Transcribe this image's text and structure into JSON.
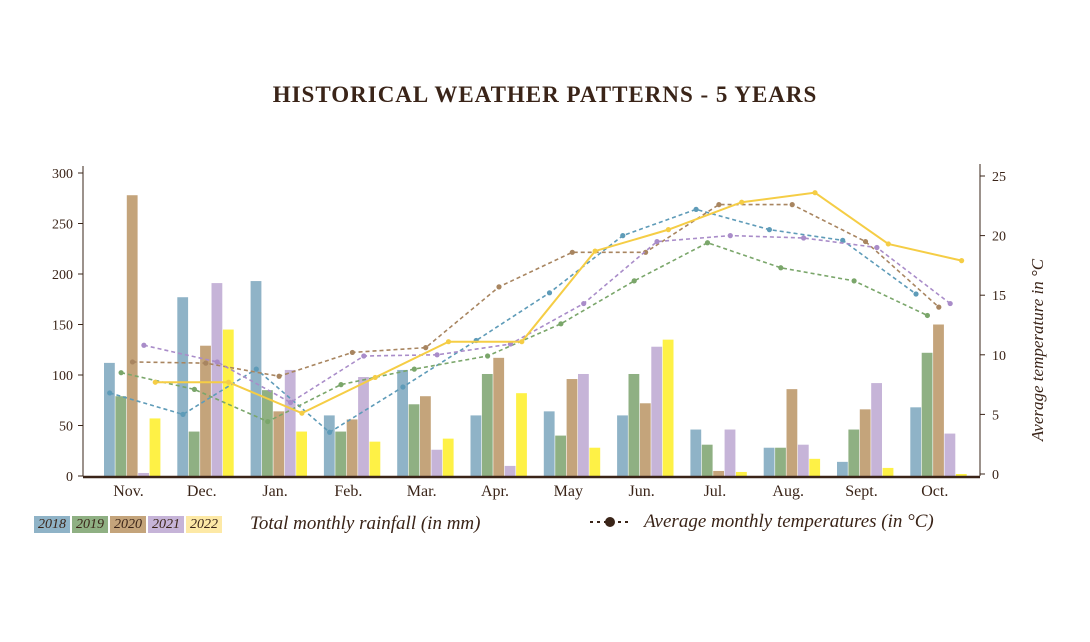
{
  "chart_data": {
    "type": "bar+line",
    "title": "HISTORICAL WEATHER PATTERNS - 5 YEARS",
    "categories": [
      "Nov.",
      "Dec.",
      "Jan.",
      "Feb.",
      "Mar.",
      "Apr.",
      "May",
      "Jun.",
      "Jul.",
      "Aug.",
      "Sept.",
      "Oct."
    ],
    "left_axis": {
      "label": "",
      "range": [
        0,
        300
      ],
      "ticks": [
        0,
        50,
        100,
        150,
        200,
        250,
        300
      ]
    },
    "right_axis": {
      "label": "Average temperature in °C",
      "range": [
        0,
        25
      ],
      "ticks": [
        0,
        5,
        10,
        15,
        20,
        25
      ]
    },
    "grid": false,
    "legend_position": "bottom",
    "rainfall_legend_label": "Total monthly rainfall (in mm)",
    "temperature_legend_label": "Average monthly temperatures (in °C)",
    "rainfall_series": [
      {
        "name": "2018",
        "color": "#8fb3c7",
        "values": [
          112,
          177,
          193,
          60,
          105,
          60,
          64,
          60,
          46,
          28,
          14,
          68
        ]
      },
      {
        "name": "2019",
        "color": "#8fb083",
        "values": [
          79,
          44,
          85,
          44,
          71,
          101,
          40,
          101,
          31,
          28,
          46,
          122
        ]
      },
      {
        "name": "2020",
        "color": "#c4a47b",
        "values": [
          278,
          129,
          64,
          56,
          79,
          117,
          96,
          72,
          5,
          86,
          66,
          150
        ]
      },
      {
        "name": "2021",
        "color": "#c6b4d8",
        "values": [
          3,
          191,
          105,
          98,
          26,
          10,
          101,
          128,
          46,
          31,
          92,
          42
        ]
      },
      {
        "name": "2022",
        "color": "#fef146",
        "legend_color": "#fde9a6",
        "values": [
          57,
          145,
          44,
          34,
          37,
          82,
          28,
          135,
          4,
          17,
          8,
          2
        ]
      }
    ],
    "temperature_series": [
      {
        "name": "2018",
        "color": "#5e9bb8",
        "style": "dashed",
        "values": [
          6.8,
          5.0,
          8.8,
          3.5,
          7.3,
          11.2,
          15.2,
          20.0,
          22.2,
          20.5,
          19.6,
          15.1
        ]
      },
      {
        "name": "2019",
        "color": "#7aa66a",
        "style": "dashed",
        "values": [
          8.5,
          7.1,
          4.4,
          7.5,
          8.8,
          9.9,
          12.6,
          16.2,
          19.4,
          17.3,
          16.2,
          13.3
        ]
      },
      {
        "name": "2020",
        "color": "#a88560",
        "style": "dashed",
        "values": [
          9.4,
          9.3,
          8.2,
          10.2,
          10.6,
          15.7,
          18.6,
          18.6,
          22.6,
          22.6,
          19.5,
          14.0
        ]
      },
      {
        "name": "2021",
        "color": "#a98cc9",
        "style": "dashed",
        "values": [
          10.8,
          9.4,
          6.0,
          9.9,
          10.0,
          10.9,
          14.3,
          19.5,
          20.0,
          19.8,
          19.0,
          14.3
        ]
      },
      {
        "name": "2022",
        "color": "#f5cd45",
        "style": "solid",
        "values": [
          7.7,
          7.7,
          5.1,
          8.1,
          11.1,
          11.1,
          18.7,
          20.5,
          22.8,
          23.6,
          19.3,
          17.9
        ]
      }
    ]
  }
}
